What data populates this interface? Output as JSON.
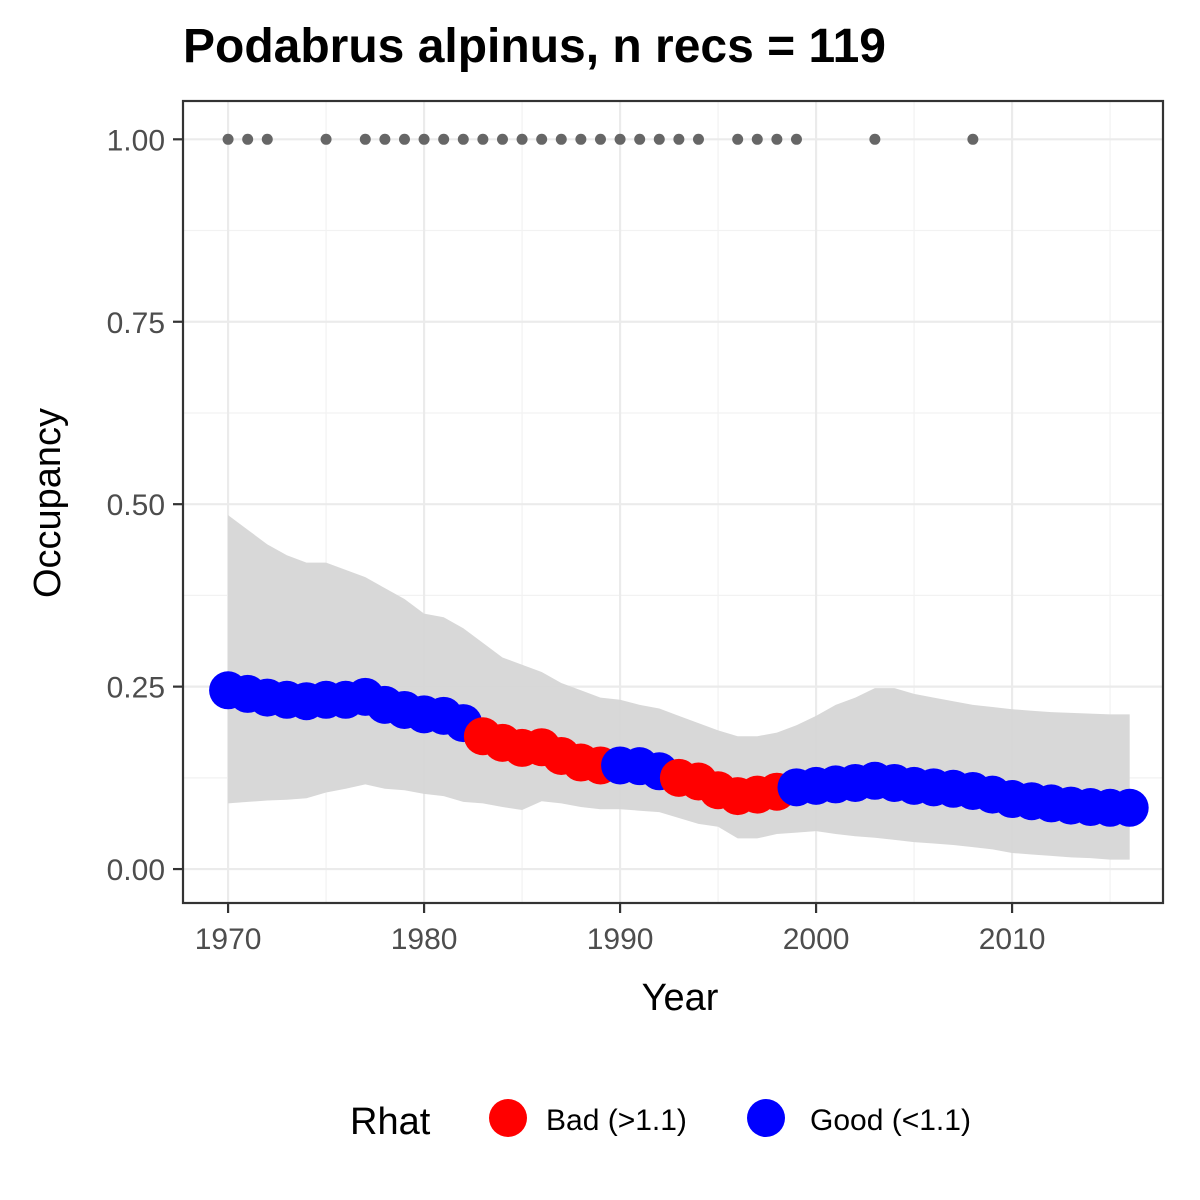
{
  "chart_data": {
    "type": "line",
    "title": "Podabrus alpinus, n recs = 119",
    "xlabel": "Year",
    "ylabel": "Occupancy",
    "xlim": [
      1967.7,
      2017.7
    ],
    "ylim": [
      -0.0465,
      1.0525
    ],
    "x_ticks": [
      1970,
      1980,
      1990,
      2000,
      2010
    ],
    "x_tick_labels": [
      "1970",
      "1980",
      "1990",
      "2000",
      "2010"
    ],
    "y_ticks": [
      0,
      0.25,
      0.5,
      0.75,
      1.0
    ],
    "y_tick_labels": [
      "0.00",
      "0.25",
      "0.50",
      "0.75",
      "1.00"
    ],
    "grid": true,
    "legend": {
      "title": "Rhat",
      "position": "bottom",
      "entries": [
        {
          "key": "bad",
          "label": "Bad (>1.1)",
          "color": "#ff0000"
        },
        {
          "key": "good",
          "label": "Good (<1.1)",
          "color": "#0000ff"
        }
      ]
    },
    "colors": {
      "bad": "#ff0000",
      "good": "#0000ff",
      "ribbon": "#d6d6d6",
      "records": "#666666"
    },
    "x": [
      1970,
      1971,
      1972,
      1973,
      1974,
      1975,
      1976,
      1977,
      1978,
      1979,
      1980,
      1981,
      1982,
      1983,
      1984,
      1985,
      1986,
      1987,
      1988,
      1989,
      1990,
      1991,
      1992,
      1993,
      1994,
      1995,
      1996,
      1997,
      1998,
      1999,
      2000,
      2001,
      2002,
      2003,
      2004,
      2005,
      2006,
      2007,
      2008,
      2009,
      2010,
      2011,
      2012,
      2013,
      2014,
      2015,
      2016
    ],
    "occupancy": [
      0.245,
      0.24,
      0.235,
      0.232,
      0.23,
      0.232,
      0.232,
      0.236,
      0.225,
      0.218,
      0.212,
      0.21,
      0.2,
      0.182,
      0.173,
      0.166,
      0.167,
      0.155,
      0.146,
      0.142,
      0.142,
      0.141,
      0.134,
      0.125,
      0.12,
      0.108,
      0.1,
      0.102,
      0.106,
      0.112,
      0.114,
      0.116,
      0.118,
      0.121,
      0.118,
      0.114,
      0.112,
      0.11,
      0.107,
      0.102,
      0.096,
      0.093,
      0.09,
      0.087,
      0.085,
      0.084,
      0.084
    ],
    "lower": [
      0.09,
      0.092,
      0.094,
      0.095,
      0.097,
      0.105,
      0.11,
      0.116,
      0.11,
      0.108,
      0.103,
      0.1,
      0.092,
      0.09,
      0.085,
      0.081,
      0.093,
      0.09,
      0.085,
      0.082,
      0.082,
      0.08,
      0.078,
      0.07,
      0.062,
      0.058,
      0.042,
      0.042,
      0.048,
      0.05,
      0.052,
      0.048,
      0.045,
      0.043,
      0.04,
      0.037,
      0.035,
      0.033,
      0.03,
      0.027,
      0.022,
      0.02,
      0.018,
      0.016,
      0.015,
      0.013,
      0.013
    ],
    "upper": [
      0.485,
      0.465,
      0.445,
      0.43,
      0.42,
      0.42,
      0.41,
      0.4,
      0.385,
      0.37,
      0.35,
      0.345,
      0.33,
      0.31,
      0.29,
      0.28,
      0.27,
      0.255,
      0.245,
      0.235,
      0.232,
      0.225,
      0.22,
      0.21,
      0.2,
      0.19,
      0.182,
      0.182,
      0.187,
      0.197,
      0.21,
      0.225,
      0.235,
      0.248,
      0.248,
      0.24,
      0.235,
      0.23,
      0.225,
      0.222,
      0.219,
      0.217,
      0.215,
      0.214,
      0.213,
      0.212,
      0.212
    ],
    "rhat": [
      "good",
      "good",
      "good",
      "good",
      "good",
      "good",
      "good",
      "good",
      "good",
      "good",
      "good",
      "good",
      "good",
      "bad",
      "bad",
      "bad",
      "bad",
      "bad",
      "bad",
      "bad",
      "good",
      "good",
      "good",
      "bad",
      "bad",
      "bad",
      "bad",
      "bad",
      "bad",
      "good",
      "good",
      "good",
      "good",
      "good",
      "good",
      "good",
      "good",
      "good",
      "good",
      "good",
      "good",
      "good",
      "good",
      "good",
      "good",
      "good",
      "good"
    ],
    "record_years": [
      1970,
      1971,
      1972,
      1975,
      1977,
      1978,
      1979,
      1980,
      1981,
      1982,
      1983,
      1984,
      1985,
      1986,
      1987,
      1988,
      1989,
      1990,
      1991,
      1992,
      1993,
      1994,
      1996,
      1997,
      1998,
      1999,
      2003,
      2008
    ],
    "record_value": 1.0
  }
}
